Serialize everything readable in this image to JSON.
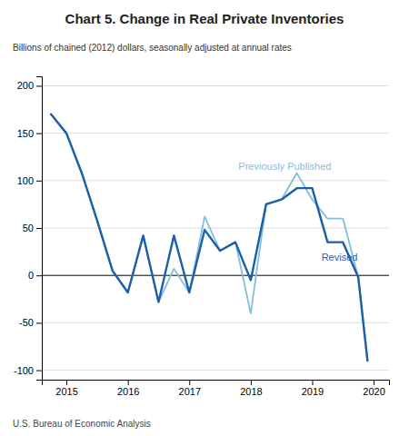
{
  "chart_data": {
    "type": "line",
    "title": "Chart 5. Change in Real Private Inventories",
    "subtitle": "Billions of chained (2012) dollars, seasonally adjusted at annual rates",
    "footer": "U.S. Bureau of Economic Analysis",
    "x": [
      2014.75,
      2015.0,
      2015.25,
      2015.5,
      2015.75,
      2016.0,
      2016.25,
      2016.5,
      2016.75,
      2017.0,
      2017.25,
      2017.5,
      2017.75,
      2018.0,
      2018.25,
      2018.5,
      2018.75,
      2019.0,
      2019.25,
      2019.5,
      2019.75,
      2019.9
    ],
    "series": [
      {
        "color": "#85bedd",
        "values": [
          170,
          150,
          108,
          58,
          5,
          -18,
          42,
          -28,
          7,
          -18,
          62,
          26,
          35,
          -40,
          75,
          80,
          108,
          80,
          60,
          60,
          -2,
          -90
        ]
      },
      {
        "color": "#1a5fa8",
        "values": [
          170,
          150,
          108,
          58,
          5,
          -18,
          42,
          -28,
          42,
          -18,
          48,
          26,
          35,
          -5,
          75,
          80,
          92,
          92,
          35,
          35,
          -2,
          -90
        ]
      }
    ],
    "annotations": [
      {
        "text": "Previously Published",
        "x": 2017.8,
        "y": 108,
        "color": "#85bedd"
      },
      {
        "text": "Revised",
        "x": 2019.15,
        "y": 13,
        "color": "#1a5fa8"
      }
    ],
    "xlim": [
      2014.6,
      2020.25
    ],
    "xticks": [
      2015,
      2016,
      2017,
      2018,
      2019,
      2020
    ],
    "ylim": [
      -110,
      210
    ],
    "yticks": [
      -100,
      -50,
      0,
      50,
      100,
      150,
      200
    ],
    "grid": true
  }
}
